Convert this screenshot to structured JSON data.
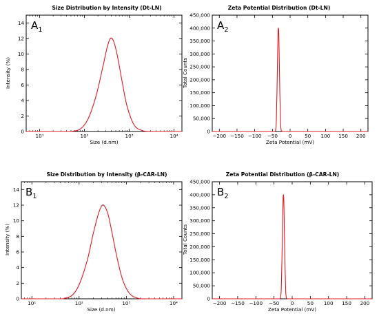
{
  "panels": [
    {
      "title": "Size Distribution by Intensity (Dt-LN)",
      "xlabel": "Size (d.nm)",
      "ylabel": "Intensity (%)",
      "panel_letter": "A",
      "panel_sub": "1"
    },
    {
      "title": "Zeta Potential Distribution (Dt-LN)",
      "xlabel": "Zeta Potential (mV)",
      "ylabel": "Total Counts",
      "panel_letter": "A",
      "panel_sub": "2"
    },
    {
      "title": "Size Distribution by Intensity (β-CAR-LN)",
      "xlabel": "Size (d.nm)",
      "ylabel": "Intensity (%)",
      "panel_letter": "B",
      "panel_sub": "1"
    },
    {
      "title": "Zeta Potential Distribution (β-CAR-LN)",
      "xlabel": "Zeta Potential (mV)",
      "ylabel": "Total Counts",
      "panel_letter": "B",
      "panel_sub": "2"
    }
  ],
  "chart_data": [
    {
      "type": "line",
      "title": "Size Distribution by Intensity (Dt-LN)",
      "xlabel": "Size (d.nm)",
      "ylabel": "Intensity (%)",
      "xscale": "log",
      "xlim": [
        5,
        15000
      ],
      "ylim": [
        0,
        15
      ],
      "xticks": [
        10,
        100,
        1000,
        10000
      ],
      "xtick_labels": [
        "10¹",
        "10²",
        "10³",
        "10⁴"
      ],
      "yticks": [
        0,
        2,
        4,
        6,
        8,
        10,
        12,
        14
      ],
      "ytick_labels": [
        "0",
        "2",
        "4",
        "6",
        "8",
        "10",
        "12",
        "14"
      ],
      "series": [
        {
          "color": "#e0191f",
          "x": [
            50,
            80,
            120,
            180,
            250,
            320,
            380,
            450,
            550,
            700,
            900,
            1300,
            2000,
            3000
          ],
          "y": [
            0,
            0.3,
            1.6,
            4.5,
            8.0,
            10.8,
            12.0,
            11.6,
            9.6,
            6.3,
            3.2,
            0.8,
            0.1,
            0
          ]
        }
      ]
    },
    {
      "type": "line",
      "title": "Zeta Potential Distribution (Dt-LN)",
      "xlabel": "Zeta Potential (mV)",
      "ylabel": "Total Counts",
      "xlim": [
        -220,
        220
      ],
      "ylim": [
        0,
        450000
      ],
      "xticks": [
        -200,
        -150,
        -100,
        -50,
        0,
        50,
        100,
        150,
        200
      ],
      "xtick_labels": [
        "−200",
        "−150",
        "−100",
        "−50",
        "0",
        "50",
        "100",
        "150",
        "200"
      ],
      "yticks": [
        0,
        50000,
        100000,
        150000,
        200000,
        250000,
        300000,
        350000,
        400000,
        450000
      ],
      "ytick_labels": [
        "0",
        "50,000",
        "100,000",
        "150,000",
        "200,000",
        "250,000",
        "300,000",
        "350,000",
        "400,000",
        "450,000"
      ],
      "series": [
        {
          "color": "#e0191f",
          "x": [
            -45,
            -41,
            -39,
            -37,
            -35,
            -34,
            -33,
            -32,
            -31,
            -29,
            -27,
            -25,
            -21
          ],
          "y": [
            0,
            5000,
            40000,
            160000,
            320000,
            385000,
            400000,
            380000,
            310000,
            150000,
            35000,
            4000,
            0
          ]
        }
      ]
    },
    {
      "type": "line",
      "title": "Size Distribution by Intensity (β-CAR-LN)",
      "xlabel": "Size (d.nm)",
      "ylabel": "Intensity (%)",
      "xscale": "log",
      "xlim": [
        6,
        15000
      ],
      "ylim": [
        0,
        15
      ],
      "xticks": [
        10,
        100,
        1000,
        10000
      ],
      "xtick_labels": [
        "10¹",
        "10²",
        "10³",
        "10⁴"
      ],
      "yticks": [
        0,
        2,
        4,
        6,
        8,
        10,
        12,
        14
      ],
      "ytick_labels": [
        "0",
        "2",
        "4",
        "6",
        "8",
        "10",
        "12",
        "14"
      ],
      "series": [
        {
          "color": "#e0191f",
          "x": [
            45,
            70,
            100,
            150,
            200,
            260,
            310,
            360,
            420,
            500,
            650,
            850,
            1200,
            1800,
            2600
          ],
          "y": [
            0,
            0.4,
            1.8,
            5.0,
            8.4,
            11.0,
            12.0,
            11.7,
            10.6,
            8.4,
            5.0,
            2.3,
            0.6,
            0.05,
            0
          ]
        }
      ]
    },
    {
      "type": "line",
      "title": "Zeta Potential Distribution (β-CAR-LN)",
      "xlabel": "Zeta Potential (mV)",
      "ylabel": "Total Counts",
      "xlim": [
        -220,
        220
      ],
      "ylim": [
        0,
        450000
      ],
      "xticks": [
        -200,
        -150,
        -100,
        -50,
        0,
        50,
        100,
        150,
        200
      ],
      "xtick_labels": [
        "−200",
        "−150",
        "−100",
        "−50",
        "0",
        "50",
        "100",
        "150",
        "200"
      ],
      "yticks": [
        0,
        50000,
        100000,
        150000,
        200000,
        250000,
        300000,
        350000,
        400000,
        450000
      ],
      "ytick_labels": [
        "0",
        "50,000",
        "100,000",
        "150,000",
        "200,000",
        "250,000",
        "300,000",
        "350,000",
        "400,000",
        "450,000"
      ],
      "series": [
        {
          "color": "#e0191f",
          "x": [
            -36,
            -32,
            -30,
            -28,
            -26,
            -25,
            -24,
            -23,
            -22,
            -20,
            -18,
            -16,
            -12
          ],
          "y": [
            0,
            5000,
            40000,
            160000,
            320000,
            385000,
            400000,
            380000,
            310000,
            150000,
            35000,
            4000,
            0
          ]
        }
      ]
    }
  ]
}
